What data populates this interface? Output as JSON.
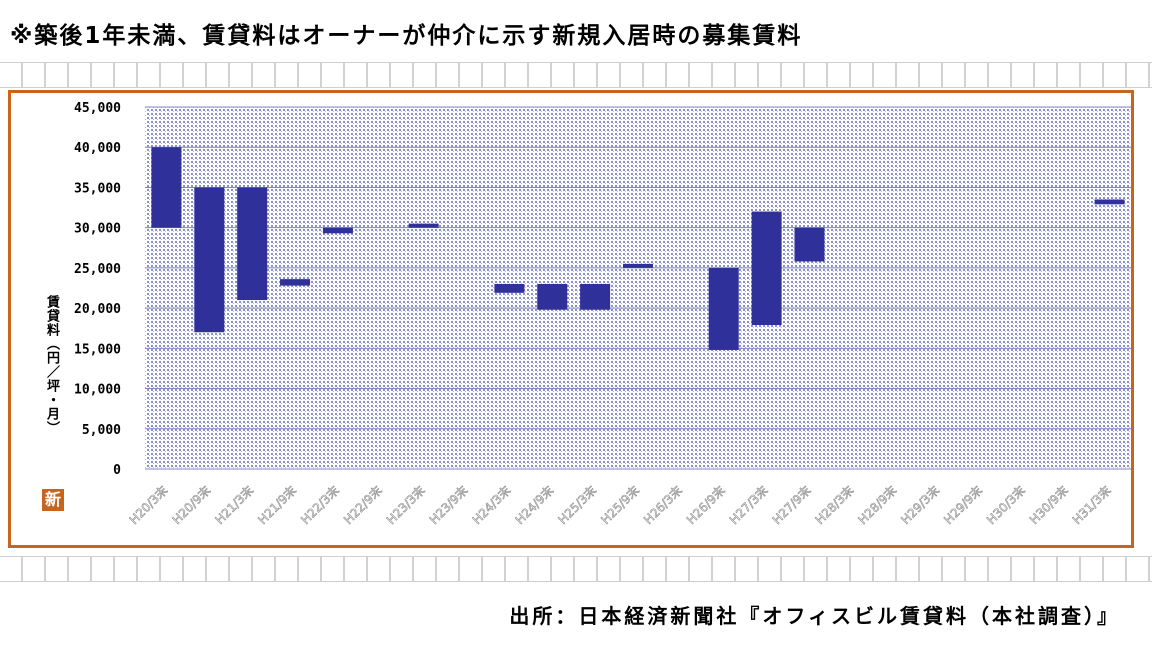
{
  "note": "※築後1年未満、賃貸料はオーナーが仲介に示す新規入居時の募集賃料",
  "source": "出所：日本経済新聞社『オフィスビル賃貸料（本社調査）』",
  "stamp": "新",
  "colors": {
    "frame": "#c8651c",
    "bar": "#30309a",
    "plot_dots": "#8a90c8"
  },
  "chart_data": {
    "type": "bar",
    "subtype": "floating-range",
    "title": "",
    "xlabel": "",
    "ylabel": "賃貸料（円／坪・月）",
    "ylim": [
      0,
      45000
    ],
    "yticks": [
      0,
      5000,
      10000,
      15000,
      20000,
      25000,
      30000,
      35000,
      40000,
      45000
    ],
    "ytick_labels": [
      "0",
      "5,000",
      "10,000",
      "15,000",
      "20,000",
      "25,000",
      "30,000",
      "35,000",
      "40,000",
      "45,000"
    ],
    "grid": true,
    "legend": "none",
    "categories": [
      "H20/3末",
      "H20/9末",
      "H21/3末",
      "H21/9末",
      "H22/3末",
      "H22/9末",
      "H23/3末",
      "H23/9末",
      "H24/3末",
      "H24/9末",
      "H25/3末",
      "H25/9末",
      "H26/3末",
      "H26/9末",
      "H27/3末",
      "H27/9末",
      "H28/3末",
      "H28/9末",
      "H29/3末",
      "H29/9末",
      "H30/3末",
      "H30/9末",
      "H31/3末"
    ],
    "series": [
      {
        "low": [
          30000,
          17000,
          21000,
          22800,
          29300,
          null,
          30000,
          null,
          21900,
          19800,
          19800,
          25000,
          null,
          14800,
          17900,
          25800,
          null,
          null,
          null,
          null,
          null,
          null,
          32900
        ],
        "high": [
          40000,
          35000,
          35000,
          23600,
          30000,
          null,
          30500,
          null,
          23000,
          23000,
          23000,
          25500,
          null,
          25000,
          32000,
          30000,
          null,
          null,
          null,
          null,
          null,
          null,
          33500
        ]
      }
    ]
  }
}
